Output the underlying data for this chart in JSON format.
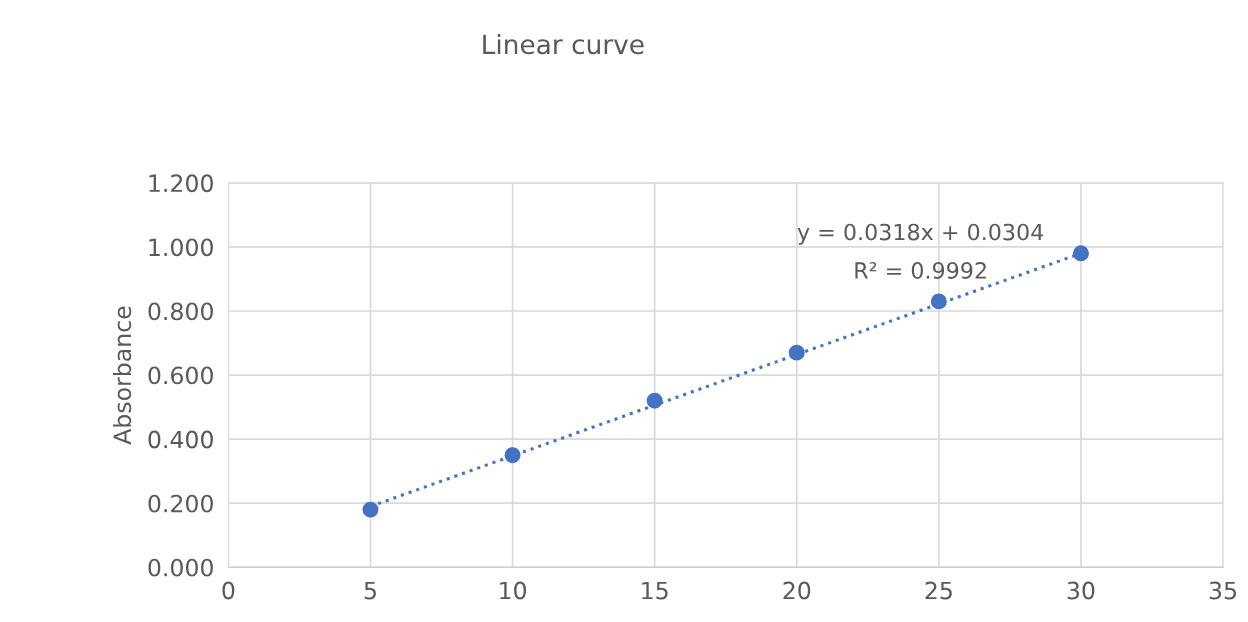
{
  "chart_data": {
    "type": "scatter",
    "title": "Linear curve",
    "ylabel": "Absorbance",
    "annotations": [
      "y = 0.0318x + 0.0304",
      "R² = 0.9992"
    ],
    "series": [
      {
        "color": "#4472c4",
        "marker": "circle",
        "x": [
          5,
          10,
          15,
          20,
          25,
          30
        ],
        "values": [
          0.18,
          0.35,
          0.52,
          0.67,
          0.83,
          0.98
        ]
      },
      {
        "type": "line",
        "color": "#4472c4",
        "line_style": "dotted",
        "marker": "none",
        "x": [
          5,
          30
        ],
        "values": [
          0.19,
          0.98
        ]
      }
    ],
    "xlim": [
      0,
      35
    ],
    "xticks": [
      0,
      5,
      10,
      15,
      20,
      25,
      30,
      35
    ],
    "ylim": [
      0,
      1.2
    ],
    "yticks": [
      {
        "value": 0,
        "label": "0.000"
      },
      {
        "value": 0.2,
        "label": "0.200"
      },
      {
        "value": 0.4,
        "label": "0.400"
      },
      {
        "value": 0.6,
        "label": "0.600"
      },
      {
        "value": 0.8,
        "label": "0.800"
      },
      {
        "value": 1.0,
        "label": "1.000"
      },
      {
        "value": 1.2,
        "label": "1.200"
      }
    ],
    "grid": true,
    "legend": false
  }
}
